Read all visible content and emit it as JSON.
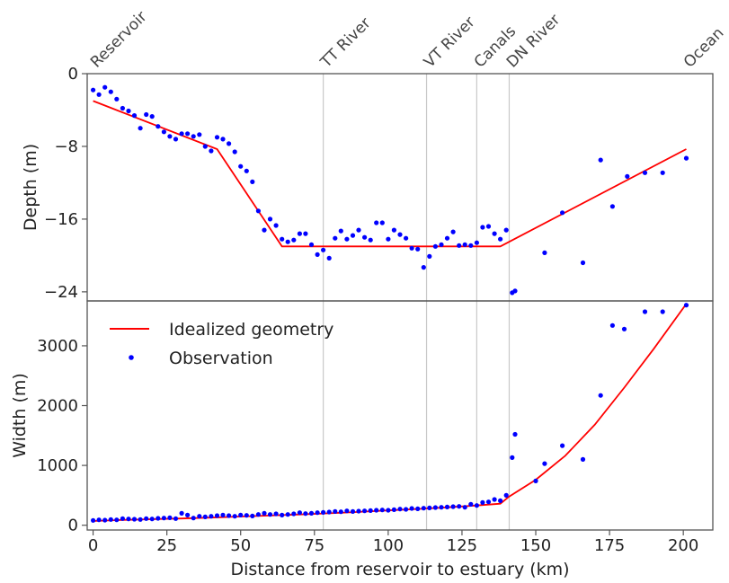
{
  "chart_data": [
    {
      "type": "line",
      "panel": "top",
      "xlabel": "",
      "ylabel": "Depth (m)",
      "xlim": [
        -2,
        210
      ],
      "ylim": [
        -25,
        0
      ],
      "yticks": [
        0,
        -8,
        -16,
        -24
      ],
      "ytick_labels": [
        "0",
        "−8",
        "−16",
        "−24"
      ],
      "grid": false,
      "location_labels": [
        {
          "label": "Reservoir",
          "x": 0,
          "line": false
        },
        {
          "label": "TT River",
          "x": 78,
          "line": true
        },
        {
          "label": "VT River",
          "x": 113,
          "line": true
        },
        {
          "label": "Canals",
          "x": 130,
          "line": true
        },
        {
          "label": "DN River",
          "x": 141,
          "line": true
        },
        {
          "label": "Ocean",
          "x": 201,
          "line": false
        }
      ],
      "series": [
        {
          "name": "Idealized geometry",
          "kind": "line",
          "color": "#ff0000",
          "x": [
            0,
            42,
            64,
            138,
            201
          ],
          "y": [
            -3.0,
            -8.3,
            -19.0,
            -19.0,
            -8.3
          ]
        },
        {
          "name": "Observation",
          "kind": "scatter",
          "color": "#0000ff",
          "x": [
            0,
            2,
            4,
            6,
            8,
            10,
            12,
            14,
            16,
            18,
            20,
            22,
            24,
            26,
            28,
            30,
            32,
            34,
            36,
            38,
            40,
            42,
            44,
            46,
            48,
            50,
            52,
            54,
            56,
            58,
            60,
            62,
            64,
            66,
            68,
            70,
            72,
            74,
            76,
            78,
            80,
            82,
            84,
            86,
            88,
            90,
            92,
            94,
            96,
            98,
            100,
            102,
            104,
            106,
            108,
            110,
            112,
            114,
            116,
            118,
            120,
            122,
            124,
            126,
            128,
            130,
            132,
            134,
            136,
            138,
            140,
            142,
            143,
            153,
            159,
            166,
            172,
            176,
            181,
            187,
            193,
            201
          ],
          "y": [
            -1.8,
            -2.3,
            -1.5,
            -2.0,
            -2.8,
            -3.8,
            -4.1,
            -4.6,
            -6.0,
            -4.5,
            -4.7,
            -5.8,
            -6.4,
            -6.9,
            -7.2,
            -6.6,
            -6.6,
            -6.9,
            -6.7,
            -8.0,
            -8.5,
            -7.0,
            -7.2,
            -7.7,
            -8.6,
            -10.2,
            -10.7,
            -11.9,
            -15.1,
            -17.2,
            -16.0,
            -16.7,
            -18.2,
            -18.5,
            -18.3,
            -17.6,
            -17.6,
            -18.8,
            -19.9,
            -19.4,
            -20.3,
            -18.1,
            -17.3,
            -18.2,
            -17.8,
            -17.2,
            -18.0,
            -18.3,
            -16.4,
            -16.4,
            -18.2,
            -17.2,
            -17.7,
            -18.1,
            -19.2,
            -19.3,
            -21.3,
            -20.1,
            -19.0,
            -18.8,
            -18.1,
            -17.4,
            -18.9,
            -18.8,
            -18.9,
            -18.6,
            -16.9,
            -16.8,
            -17.6,
            -18.2,
            -17.2,
            -24.1,
            -23.9,
            -19.7,
            -15.3,
            -20.8,
            -9.5,
            -14.6,
            -11.3,
            -10.9,
            -10.9,
            -9.3
          ]
        }
      ]
    },
    {
      "type": "line",
      "panel": "bottom",
      "xlabel": "Distance from reservoir to estuary (km)",
      "ylabel": "Width (m)",
      "xlim": [
        -2,
        210
      ],
      "ylim": [
        -80,
        3750
      ],
      "xticks": [
        0,
        25,
        50,
        75,
        100,
        125,
        150,
        175,
        200
      ],
      "yticks": [
        0,
        1000,
        2000,
        3000
      ],
      "grid": false,
      "legend": {
        "placement": "top-left",
        "entries": [
          "Idealized geometry",
          "Observation"
        ]
      },
      "series": [
        {
          "name": "Idealized geometry",
          "kind": "line",
          "color": "#ff0000",
          "x": [
            0,
            10,
            20,
            30,
            40,
            50,
            60,
            70,
            80,
            90,
            100,
            110,
            120,
            130,
            138,
            141,
            150,
            160,
            170,
            180,
            190,
            201
          ],
          "y": [
            70,
            88,
            100,
            113,
            128,
            145,
            162,
            180,
            200,
            222,
            248,
            272,
            298,
            330,
            360,
            480,
            760,
            1160,
            1680,
            2300,
            2950,
            3700
          ]
        },
        {
          "name": "Observation",
          "kind": "scatter",
          "color": "#0000ff",
          "x": [
            0,
            2,
            4,
            6,
            8,
            10,
            12,
            14,
            16,
            18,
            20,
            22,
            24,
            26,
            28,
            30,
            32,
            34,
            36,
            38,
            40,
            42,
            44,
            46,
            48,
            50,
            52,
            54,
            56,
            58,
            60,
            62,
            64,
            66,
            68,
            70,
            72,
            74,
            76,
            78,
            80,
            82,
            84,
            86,
            88,
            90,
            92,
            94,
            96,
            98,
            100,
            102,
            104,
            106,
            108,
            110,
            112,
            114,
            116,
            118,
            120,
            122,
            124,
            126,
            128,
            130,
            132,
            134,
            136,
            138,
            140,
            142,
            143,
            150,
            153,
            159,
            166,
            172,
            176,
            180,
            187,
            193,
            201
          ],
          "y": [
            80,
            90,
            85,
            95,
            90,
            110,
            105,
            100,
            95,
            110,
            105,
            115,
            120,
            125,
            110,
            200,
            170,
            120,
            150,
            140,
            150,
            160,
            170,
            160,
            150,
            170,
            165,
            155,
            180,
            200,
            180,
            190,
            170,
            180,
            190,
            210,
            195,
            200,
            210,
            215,
            220,
            230,
            225,
            240,
            230,
            235,
            240,
            245,
            250,
            255,
            250,
            260,
            270,
            265,
            280,
            275,
            285,
            290,
            295,
            300,
            305,
            310,
            315,
            300,
            350,
            330,
            380,
            390,
            430,
            410,
            500,
            1130,
            1520,
            740,
            1030,
            1330,
            1100,
            2170,
            3340,
            3280,
            3570,
            3570,
            3680
          ]
        }
      ]
    }
  ]
}
